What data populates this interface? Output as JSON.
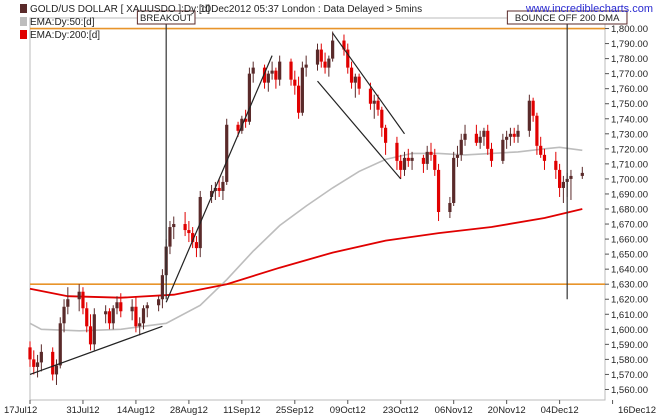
{
  "chart_data": {
    "type": "candlestick",
    "title": "GOLD/US DOLLAR [ XAUUSDO ]:Dy:[d]",
    "timestamp": "10Dec2012 05:37 London : Data Delayed > 5mins",
    "brand": "www.incrediblecharts.com",
    "legend": [
      {
        "label": "GOLD/US DOLLAR [ XAUUSDO ]:Dy:[d]",
        "color": "#5a2a2a"
      },
      {
        "label": "EMA:Dy:50:[d]",
        "color": "#bdbdbd"
      },
      {
        "label": "EMA:Dy:200:[d]",
        "color": "#e00000"
      }
    ],
    "x_tick_labels": [
      "17Jul12",
      "31Jul12",
      "14Aug12",
      "28Aug12",
      "11Sep12",
      "25Sep12",
      "09Oct12",
      "23Oct12",
      "06Nov12",
      "20Nov12",
      "04Dec12",
      "16Dec12"
    ],
    "y_tick_labels": [
      "1,800.00",
      "1,790.00",
      "1,780.00",
      "1,770.00",
      "1,760.00",
      "1,750.00",
      "1,740.00",
      "1,730.00",
      "1,720.00",
      "1,710.00",
      "1,700.00",
      "1,690.00",
      "1,680.00",
      "1,670.00",
      "1,660.00",
      "1,650.00",
      "1,640.00",
      "1,630.00",
      "1,620.00",
      "1,610.00",
      "1,600.00",
      "1,590.00",
      "1,580.00",
      "1,570.00",
      "1,560.00"
    ],
    "ylim": [
      1553,
      1807
    ],
    "x_start": "2012-07-17",
    "x_end": "2012-12-16",
    "horizontal_lines": [
      {
        "value": 1800,
        "color": "#e8942a"
      },
      {
        "value": 1630,
        "color": "#e8942a"
      }
    ],
    "annotations": [
      {
        "label": "BREAKOUT",
        "date": "2012-08-22"
      },
      {
        "label": "BOUNCE OFF 200 DMA",
        "date": "2012-12-06"
      }
    ],
    "trendlines": [
      {
        "from": {
          "date": "2012-07-17",
          "value": 1570
        },
        "to": {
          "date": "2012-08-21",
          "value": 1602
        }
      },
      {
        "from": {
          "date": "2012-08-22",
          "value": 1618
        },
        "to": {
          "date": "2012-09-19",
          "value": 1782
        }
      },
      {
        "from": {
          "date": "2012-10-05",
          "value": 1797
        },
        "to": {
          "date": "2012-10-24",
          "value": 1730
        }
      },
      {
        "from": {
          "date": "2012-10-01",
          "value": 1765
        },
        "to": {
          "date": "2012-10-23",
          "value": 1700
        }
      }
    ],
    "ema50": [
      {
        "date": "2012-07-17",
        "value": 1604
      },
      {
        "date": "2012-07-20",
        "value": 1600
      },
      {
        "date": "2012-07-30",
        "value": 1599
      },
      {
        "date": "2012-08-10",
        "value": 1600
      },
      {
        "date": "2012-08-22",
        "value": 1604
      },
      {
        "date": "2012-08-31",
        "value": 1616
      },
      {
        "date": "2012-09-07",
        "value": 1633
      },
      {
        "date": "2012-09-14",
        "value": 1652
      },
      {
        "date": "2012-09-21",
        "value": 1669
      },
      {
        "date": "2012-09-28",
        "value": 1682
      },
      {
        "date": "2012-10-05",
        "value": 1694
      },
      {
        "date": "2012-10-12",
        "value": 1705
      },
      {
        "date": "2012-10-19",
        "value": 1713
      },
      {
        "date": "2012-10-26",
        "value": 1717
      },
      {
        "date": "2012-11-02",
        "value": 1717
      },
      {
        "date": "2012-11-09",
        "value": 1716
      },
      {
        "date": "2012-11-16",
        "value": 1717
      },
      {
        "date": "2012-11-23",
        "value": 1718
      },
      {
        "date": "2012-11-30",
        "value": 1720
      },
      {
        "date": "2012-12-04",
        "value": 1721
      },
      {
        "date": "2012-12-10",
        "value": 1719
      }
    ],
    "ema200": [
      {
        "date": "2012-07-17",
        "value": 1627
      },
      {
        "date": "2012-07-27",
        "value": 1622
      },
      {
        "date": "2012-08-10",
        "value": 1621
      },
      {
        "date": "2012-08-24",
        "value": 1623
      },
      {
        "date": "2012-09-07",
        "value": 1630
      },
      {
        "date": "2012-09-21",
        "value": 1641
      },
      {
        "date": "2012-10-05",
        "value": 1651
      },
      {
        "date": "2012-10-19",
        "value": 1659
      },
      {
        "date": "2012-11-02",
        "value": 1664
      },
      {
        "date": "2012-11-16",
        "value": 1668
      },
      {
        "date": "2012-11-30",
        "value": 1674
      },
      {
        "date": "2012-12-10",
        "value": 1680
      }
    ],
    "candles": [
      {
        "date": "2012-07-17",
        "open": 1588,
        "high": 1592,
        "low": 1575,
        "close": 1580
      },
      {
        "date": "2012-07-18",
        "open": 1580,
        "high": 1586,
        "low": 1570,
        "close": 1575
      },
      {
        "date": "2012-07-19",
        "open": 1575,
        "high": 1583,
        "low": 1568,
        "close": 1578
      },
      {
        "date": "2012-07-20",
        "open": 1578,
        "high": 1590,
        "low": 1572,
        "close": 1585
      },
      {
        "date": "2012-07-23",
        "open": 1585,
        "high": 1588,
        "low": 1566,
        "close": 1570
      },
      {
        "date": "2012-07-24",
        "open": 1570,
        "high": 1580,
        "low": 1563,
        "close": 1576
      },
      {
        "date": "2012-07-25",
        "open": 1576,
        "high": 1608,
        "low": 1574,
        "close": 1604
      },
      {
        "date": "2012-07-26",
        "open": 1604,
        "high": 1620,
        "low": 1598,
        "close": 1615
      },
      {
        "date": "2012-07-27",
        "open": 1615,
        "high": 1628,
        "low": 1610,
        "close": 1620
      },
      {
        "date": "2012-07-30",
        "open": 1620,
        "high": 1630,
        "low": 1612,
        "close": 1625
      },
      {
        "date": "2012-07-31",
        "open": 1625,
        "high": 1628,
        "low": 1610,
        "close": 1614
      },
      {
        "date": "2012-08-01",
        "open": 1614,
        "high": 1618,
        "low": 1598,
        "close": 1602
      },
      {
        "date": "2012-08-02",
        "open": 1602,
        "high": 1610,
        "low": 1586,
        "close": 1590
      },
      {
        "date": "2012-08-03",
        "open": 1590,
        "high": 1614,
        "low": 1586,
        "close": 1610
      },
      {
        "date": "2012-08-06",
        "open": 1610,
        "high": 1616,
        "low": 1604,
        "close": 1612
      },
      {
        "date": "2012-08-07",
        "open": 1612,
        "high": 1614,
        "low": 1600,
        "close": 1604
      },
      {
        "date": "2012-08-08",
        "open": 1604,
        "high": 1616,
        "low": 1600,
        "close": 1614
      },
      {
        "date": "2012-08-09",
        "open": 1614,
        "high": 1622,
        "low": 1610,
        "close": 1618
      },
      {
        "date": "2012-08-10",
        "open": 1618,
        "high": 1624,
        "low": 1608,
        "close": 1612
      },
      {
        "date": "2012-08-13",
        "open": 1612,
        "high": 1620,
        "low": 1606,
        "close": 1615
      },
      {
        "date": "2012-08-14",
        "open": 1615,
        "high": 1622,
        "low": 1598,
        "close": 1602
      },
      {
        "date": "2012-08-15",
        "open": 1602,
        "high": 1608,
        "low": 1596,
        "close": 1604
      },
      {
        "date": "2012-08-16",
        "open": 1604,
        "high": 1616,
        "low": 1600,
        "close": 1614
      },
      {
        "date": "2012-08-17",
        "open": 1614,
        "high": 1618,
        "low": 1608,
        "close": 1616
      },
      {
        "date": "2012-08-20",
        "open": 1616,
        "high": 1622,
        "low": 1612,
        "close": 1620
      },
      {
        "date": "2012-08-21",
        "open": 1620,
        "high": 1640,
        "low": 1614,
        "close": 1636
      },
      {
        "date": "2012-08-22",
        "open": 1636,
        "high": 1660,
        "low": 1632,
        "close": 1655
      },
      {
        "date": "2012-08-23",
        "open": 1655,
        "high": 1672,
        "low": 1650,
        "close": 1668
      },
      {
        "date": "2012-08-24",
        "open": 1668,
        "high": 1675,
        "low": 1660,
        "close": 1670
      },
      {
        "date": "2012-08-27",
        "open": 1670,
        "high": 1678,
        "low": 1662,
        "close": 1666
      },
      {
        "date": "2012-08-28",
        "open": 1666,
        "high": 1672,
        "low": 1658,
        "close": 1664
      },
      {
        "date": "2012-08-29",
        "open": 1664,
        "high": 1668,
        "low": 1654,
        "close": 1658
      },
      {
        "date": "2012-08-30",
        "open": 1658,
        "high": 1662,
        "low": 1648,
        "close": 1654
      },
      {
        "date": "2012-08-31",
        "open": 1654,
        "high": 1692,
        "low": 1648,
        "close": 1688
      },
      {
        "date": "2012-09-03",
        "open": 1688,
        "high": 1696,
        "low": 1684,
        "close": 1692
      },
      {
        "date": "2012-09-04",
        "open": 1692,
        "high": 1698,
        "low": 1686,
        "close": 1694
      },
      {
        "date": "2012-09-05",
        "open": 1694,
        "high": 1700,
        "low": 1688,
        "close": 1692
      },
      {
        "date": "2012-09-06",
        "open": 1692,
        "high": 1702,
        "low": 1686,
        "close": 1698
      },
      {
        "date": "2012-09-07",
        "open": 1698,
        "high": 1740,
        "low": 1696,
        "close": 1736
      },
      {
        "date": "2012-09-10",
        "open": 1736,
        "high": 1738,
        "low": 1728,
        "close": 1732
      },
      {
        "date": "2012-09-11",
        "open": 1732,
        "high": 1742,
        "low": 1730,
        "close": 1740
      },
      {
        "date": "2012-09-12",
        "open": 1740,
        "high": 1746,
        "low": 1734,
        "close": 1738
      },
      {
        "date": "2012-09-13",
        "open": 1738,
        "high": 1774,
        "low": 1736,
        "close": 1770
      },
      {
        "date": "2012-09-14",
        "open": 1770,
        "high": 1778,
        "low": 1764,
        "close": 1774
      },
      {
        "date": "2012-09-17",
        "open": 1774,
        "high": 1776,
        "low": 1760,
        "close": 1764
      },
      {
        "date": "2012-09-18",
        "open": 1764,
        "high": 1772,
        "low": 1758,
        "close": 1770
      },
      {
        "date": "2012-09-19",
        "open": 1770,
        "high": 1778,
        "low": 1766,
        "close": 1772
      },
      {
        "date": "2012-09-20",
        "open": 1772,
        "high": 1774,
        "low": 1760,
        "close": 1766
      },
      {
        "date": "2012-09-21",
        "open": 1766,
        "high": 1782,
        "low": 1762,
        "close": 1778
      },
      {
        "date": "2012-09-24",
        "open": 1778,
        "high": 1780,
        "low": 1762,
        "close": 1766
      },
      {
        "date": "2012-09-25",
        "open": 1766,
        "high": 1772,
        "low": 1756,
        "close": 1762
      },
      {
        "date": "2012-09-26",
        "open": 1762,
        "high": 1768,
        "low": 1740,
        "close": 1744
      },
      {
        "date": "2012-09-27",
        "open": 1744,
        "high": 1778,
        "low": 1742,
        "close": 1774
      },
      {
        "date": "2012-09-28",
        "open": 1774,
        "high": 1782,
        "low": 1768,
        "close": 1776
      },
      {
        "date": "2012-10-01",
        "open": 1776,
        "high": 1790,
        "low": 1772,
        "close": 1786
      },
      {
        "date": "2012-10-02",
        "open": 1786,
        "high": 1790,
        "low": 1774,
        "close": 1778
      },
      {
        "date": "2012-10-03",
        "open": 1778,
        "high": 1784,
        "low": 1770,
        "close": 1774
      },
      {
        "date": "2012-10-04",
        "open": 1774,
        "high": 1782,
        "low": 1768,
        "close": 1780
      },
      {
        "date": "2012-10-05",
        "open": 1780,
        "high": 1798,
        "low": 1778,
        "close": 1792
      },
      {
        "date": "2012-10-08",
        "open": 1792,
        "high": 1796,
        "low": 1782,
        "close": 1786
      },
      {
        "date": "2012-10-09",
        "open": 1786,
        "high": 1790,
        "low": 1770,
        "close": 1774
      },
      {
        "date": "2012-10-10",
        "open": 1774,
        "high": 1778,
        "low": 1760,
        "close": 1764
      },
      {
        "date": "2012-10-11",
        "open": 1764,
        "high": 1770,
        "low": 1754,
        "close": 1768
      },
      {
        "date": "2012-10-12",
        "open": 1768,
        "high": 1770,
        "low": 1756,
        "close": 1760
      },
      {
        "date": "2012-10-15",
        "open": 1760,
        "high": 1764,
        "low": 1746,
        "close": 1750
      },
      {
        "date": "2012-10-16",
        "open": 1750,
        "high": 1756,
        "low": 1740,
        "close": 1752
      },
      {
        "date": "2012-10-17",
        "open": 1752,
        "high": 1756,
        "low": 1742,
        "close": 1746
      },
      {
        "date": "2012-10-18",
        "open": 1746,
        "high": 1748,
        "low": 1728,
        "close": 1734
      },
      {
        "date": "2012-10-19",
        "open": 1734,
        "high": 1736,
        "low": 1716,
        "close": 1724
      },
      {
        "date": "2012-10-22",
        "open": 1724,
        "high": 1728,
        "low": 1706,
        "close": 1712
      },
      {
        "date": "2012-10-23",
        "open": 1712,
        "high": 1716,
        "low": 1700,
        "close": 1706
      },
      {
        "date": "2012-10-24",
        "open": 1706,
        "high": 1718,
        "low": 1702,
        "close": 1714
      },
      {
        "date": "2012-10-25",
        "open": 1714,
        "high": 1720,
        "low": 1708,
        "close": 1712
      },
      {
        "date": "2012-10-26",
        "open": 1712,
        "high": 1718,
        "low": 1706,
        "close": 1714
      },
      {
        "date": "2012-10-29",
        "open": 1714,
        "high": 1716,
        "low": 1704,
        "close": 1710
      },
      {
        "date": "2012-10-30",
        "open": 1710,
        "high": 1722,
        "low": 1706,
        "close": 1718
      },
      {
        "date": "2012-10-31",
        "open": 1718,
        "high": 1724,
        "low": 1712,
        "close": 1716
      },
      {
        "date": "2012-11-01",
        "open": 1716,
        "high": 1720,
        "low": 1702,
        "close": 1706
      },
      {
        "date": "2012-11-02",
        "open": 1706,
        "high": 1710,
        "low": 1672,
        "close": 1678
      },
      {
        "date": "2012-11-05",
        "open": 1678,
        "high": 1688,
        "low": 1674,
        "close": 1684
      },
      {
        "date": "2012-11-06",
        "open": 1684,
        "high": 1718,
        "low": 1682,
        "close": 1714
      },
      {
        "date": "2012-11-07",
        "open": 1714,
        "high": 1722,
        "low": 1708,
        "close": 1716
      },
      {
        "date": "2012-11-08",
        "open": 1716,
        "high": 1730,
        "low": 1712,
        "close": 1726
      },
      {
        "date": "2012-11-09",
        "open": 1726,
        "high": 1736,
        "low": 1722,
        "close": 1730
      },
      {
        "date": "2012-11-12",
        "open": 1730,
        "high": 1736,
        "low": 1722,
        "close": 1724
      },
      {
        "date": "2012-11-13",
        "open": 1724,
        "high": 1732,
        "low": 1720,
        "close": 1728
      },
      {
        "date": "2012-11-14",
        "open": 1728,
        "high": 1734,
        "low": 1722,
        "close": 1732
      },
      {
        "date": "2012-11-15",
        "open": 1732,
        "high": 1736,
        "low": 1716,
        "close": 1720
      },
      {
        "date": "2012-11-16",
        "open": 1720,
        "high": 1724,
        "low": 1708,
        "close": 1712
      },
      {
        "date": "2012-11-19",
        "open": 1712,
        "high": 1730,
        "low": 1710,
        "close": 1726
      },
      {
        "date": "2012-11-20",
        "open": 1726,
        "high": 1732,
        "low": 1720,
        "close": 1728
      },
      {
        "date": "2012-11-21",
        "open": 1728,
        "high": 1734,
        "low": 1722,
        "close": 1730
      },
      {
        "date": "2012-11-22",
        "open": 1730,
        "high": 1734,
        "low": 1724,
        "close": 1728
      },
      {
        "date": "2012-11-23",
        "open": 1728,
        "high": 1736,
        "low": 1724,
        "close": 1732
      },
      {
        "date": "2012-11-26",
        "open": 1732,
        "high": 1756,
        "low": 1728,
        "close": 1752
      },
      {
        "date": "2012-11-27",
        "open": 1752,
        "high": 1754,
        "low": 1738,
        "close": 1742
      },
      {
        "date": "2012-11-28",
        "open": 1742,
        "high": 1744,
        "low": 1716,
        "close": 1722
      },
      {
        "date": "2012-11-29",
        "open": 1722,
        "high": 1728,
        "low": 1714,
        "close": 1716
      },
      {
        "date": "2012-11-30",
        "open": 1716,
        "high": 1720,
        "low": 1706,
        "close": 1712
      },
      {
        "date": "2012-12-03",
        "open": 1712,
        "high": 1718,
        "low": 1700,
        "close": 1706
      },
      {
        "date": "2012-12-04",
        "open": 1706,
        "high": 1710,
        "low": 1688,
        "close": 1694
      },
      {
        "date": "2012-12-05",
        "open": 1694,
        "high": 1702,
        "low": 1684,
        "close": 1698
      },
      {
        "date": "2012-12-06",
        "open": 1698,
        "high": 1704,
        "low": 1688,
        "close": 1700
      },
      {
        "date": "2012-12-07",
        "open": 1700,
        "high": 1706,
        "low": 1686,
        "close": 1702
      },
      {
        "date": "2012-12-10",
        "open": 1702,
        "high": 1708,
        "low": 1700,
        "close": 1704
      }
    ]
  }
}
